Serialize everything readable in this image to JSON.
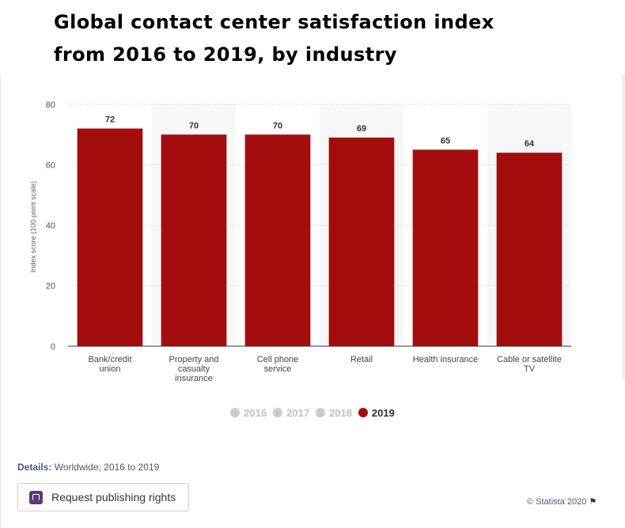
{
  "title_line1": "Global contact center satisfaction index",
  "title_line2": "from 2016 to 2019, by industry",
  "chart_data": {
    "type": "bar",
    "categories": [
      [
        "Bank/credit",
        "union"
      ],
      [
        "Property and",
        "casualty",
        "insurance"
      ],
      [
        "Cell phone",
        "service"
      ],
      [
        "Retail"
      ],
      [
        "Health insurance"
      ],
      [
        "Cable or satellite",
        "TV"
      ]
    ],
    "series": [
      {
        "name": "2019",
        "values": [
          72,
          70,
          70,
          69,
          65,
          64
        ]
      }
    ],
    "ylabel": "Index score (100-point scale)",
    "ylim": [
      0,
      80
    ],
    "yticks": [
      0,
      20,
      40,
      60,
      80
    ],
    "grid": true,
    "legend_position": "bottom",
    "bar_color": "#a30d0d",
    "data_labels": true
  },
  "legend": [
    {
      "label": "2016",
      "color": "#cccccc",
      "active": false
    },
    {
      "label": "2017",
      "color": "#cccccc",
      "active": false
    },
    {
      "label": "2018",
      "color": "#cccccc",
      "active": false
    },
    {
      "label": "2019",
      "color": "#a30d0d",
      "active": true
    }
  ],
  "details_label": "Details:",
  "details_text": "Worldwide; 2016 to 2019",
  "publish_button_label": "Request publishing rights",
  "copyright": "© Statista 2020"
}
